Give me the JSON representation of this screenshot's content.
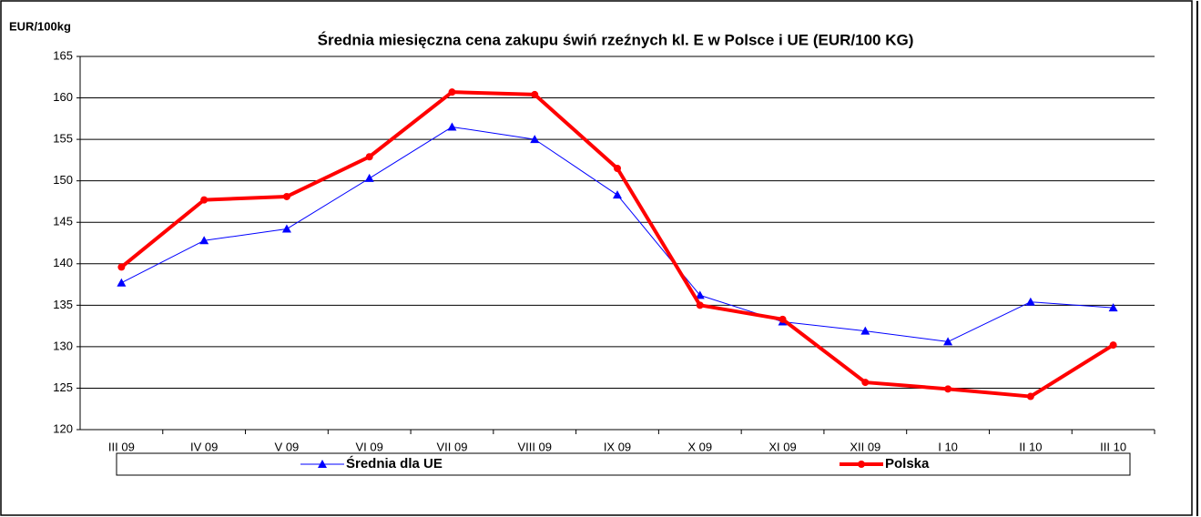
{
  "chart_data": {
    "type": "line",
    "title": "Średnia miesięczna cena zakupu świń rzeźnych kl. E w  Polsce i UE (EUR/100 KG)",
    "y_label": "EUR/100kg",
    "categories": [
      "III 09",
      "IV 09",
      "V 09",
      "VI 09",
      "VII 09",
      "VIII 09",
      "IX 09",
      "X 09",
      "XI 09",
      "XII 09",
      "I 10",
      "II 10",
      "III 10"
    ],
    "series": [
      {
        "name": "Średnia dla  UE",
        "color": "#0000ff",
        "marker": "triangle",
        "values": [
          137.7,
          142.8,
          144.2,
          150.3,
          156.5,
          155.0,
          148.3,
          136.2,
          133.0,
          131.9,
          130.6,
          135.4,
          134.7
        ]
      },
      {
        "name": "Polska",
        "color": "#ff0000",
        "marker": "circle",
        "values": [
          139.6,
          147.7,
          148.1,
          152.9,
          160.7,
          160.4,
          151.5,
          135.0,
          133.3,
          125.7,
          124.9,
          124.0,
          130.2
        ]
      }
    ],
    "ylim": [
      120,
      165
    ],
    "yticks": [
      120,
      125,
      130,
      135,
      140,
      145,
      150,
      155,
      160,
      165
    ],
    "grid": true,
    "legend": "bottom"
  }
}
